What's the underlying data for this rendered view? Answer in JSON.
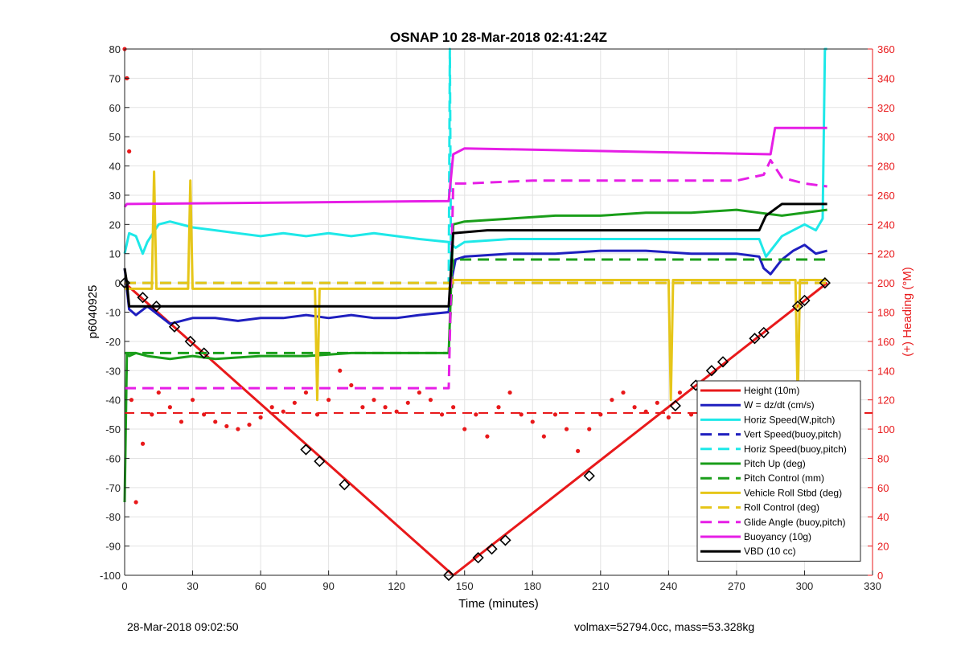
{
  "footer": {
    "left": "28-Mar-2018 09:02:50",
    "right": "volmax=52794.0cc, mass=53.328kg"
  },
  "chart_data": {
    "type": "line",
    "title": "OSNAP 10 28-Mar-2018 02:41:24Z",
    "xlabel": "Time (minutes)",
    "ylabel": "p6040925",
    "y2label": "(+) Heading (°M)",
    "xlim": [
      0,
      330
    ],
    "ylim": [
      -100,
      80
    ],
    "y2lim": [
      0,
      360
    ],
    "xticks": [
      0,
      30,
      60,
      90,
      120,
      150,
      180,
      210,
      240,
      270,
      300,
      330
    ],
    "yticks": [
      -100,
      -90,
      -80,
      -70,
      -60,
      -50,
      -40,
      -30,
      -20,
      -10,
      0,
      10,
      20,
      30,
      40,
      50,
      60,
      70,
      80
    ],
    "y2ticks": [
      0,
      20,
      40,
      60,
      80,
      100,
      120,
      140,
      160,
      180,
      200,
      220,
      240,
      260,
      280,
      300,
      320,
      340,
      360
    ],
    "grid": true,
    "legend_position": "bottom-right",
    "series": [
      {
        "name": "Height (10m)",
        "color": "#e8191b",
        "dash": "solid",
        "x": [
          0,
          145,
          310
        ],
        "y": [
          0,
          -100,
          0
        ]
      },
      {
        "name": "W = dz/dt (cm/s)",
        "color": "#1f1fbf",
        "dash": "solid",
        "x": [
          0,
          2,
          5,
          10,
          20,
          30,
          40,
          50,
          60,
          70,
          80,
          90,
          100,
          110,
          120,
          130,
          143,
          144,
          146,
          150,
          170,
          190,
          210,
          230,
          250,
          270,
          280,
          282,
          285,
          290,
          295,
          300,
          305,
          310
        ],
        "y": [
          5,
          -9,
          -11,
          -8,
          -14,
          -12,
          -12,
          -13,
          -12,
          -12,
          -11,
          -12,
          -11,
          -12,
          -12,
          -11,
          -10,
          0,
          8,
          9,
          10,
          10,
          11,
          11,
          10,
          10,
          9,
          5,
          3,
          8,
          11,
          13,
          10,
          11
        ]
      },
      {
        "name": "Horiz Speed(W,pitch)",
        "color": "#1ee8e8",
        "dash": "solid",
        "x": [
          0,
          2,
          5,
          8,
          10,
          15,
          20,
          30,
          40,
          50,
          60,
          70,
          80,
          90,
          100,
          110,
          120,
          130,
          143,
          146,
          150,
          170,
          190,
          210,
          230,
          250,
          270,
          280,
          283,
          286,
          290,
          295,
          300,
          305,
          308,
          309,
          310
        ],
        "y": [
          10,
          17,
          16,
          10,
          14,
          20,
          21,
          19,
          18,
          17,
          16,
          17,
          16,
          17,
          16,
          17,
          16,
          15,
          14,
          12,
          14,
          15,
          15,
          15,
          15,
          15,
          15,
          15,
          9,
          12,
          16,
          18,
          20,
          18,
          22,
          80,
          80
        ]
      },
      {
        "name": "Vert Speed(buoy,pitch)",
        "color": "#1f1fbf",
        "dash": "dashed",
        "x": [
          0,
          310
        ],
        "y": [
          0,
          0
        ]
      },
      {
        "name": "Horiz Speed(buoy,pitch)",
        "color": "#1ee8e8",
        "dash": "dashed",
        "x": [
          0,
          143,
          143.5,
          144
        ],
        "y": [
          0,
          0,
          80,
          7
        ]
      },
      {
        "name": "Pitch Up (deg)",
        "color": "#1a9e1a",
        "dash": "solid",
        "x": [
          0,
          1,
          2,
          5,
          10,
          20,
          30,
          40,
          60,
          80,
          100,
          120,
          143,
          145,
          150,
          170,
          190,
          210,
          230,
          250,
          270,
          280,
          290,
          300,
          310
        ],
        "y": [
          -75,
          -24,
          -25,
          -24,
          -25,
          -26,
          -25,
          -26,
          -25,
          -25,
          -24,
          -24,
          -24,
          20,
          21,
          22,
          23,
          23,
          24,
          24,
          25,
          24,
          23,
          24,
          25
        ]
      },
      {
        "name": "Pitch Control (mm)",
        "color": "#1a9e1a",
        "dash": "dashed",
        "x": [
          0,
          143,
          145,
          310
        ],
        "y": [
          -24,
          -24,
          8,
          8
        ]
      },
      {
        "name": "Vehicle Roll Stbd (deg)",
        "color": "#e6c619",
        "dash": "solid",
        "x": [
          0,
          10,
          12,
          13,
          14,
          20,
          28,
          29,
          30,
          40,
          80,
          84,
          85,
          86,
          100,
          143,
          145,
          160,
          170,
          200,
          240,
          241,
          242,
          243,
          260,
          290,
          296,
          297,
          298,
          310
        ],
        "y": [
          -2,
          -2,
          -2,
          38,
          -2,
          -2,
          -2,
          35,
          -2,
          -2,
          -2,
          -2,
          -40,
          -2,
          -2,
          -2,
          1,
          1,
          1,
          1,
          1,
          -40,
          1,
          1,
          1,
          1,
          1,
          -40,
          1,
          1
        ]
      },
      {
        "name": "Roll Control (deg)",
        "color": "#e6c619",
        "dash": "dashed",
        "x": [
          0,
          143,
          145,
          310
        ],
        "y": [
          0,
          0,
          0,
          0
        ]
      },
      {
        "name": "Glide Angle (buoy,pitch)",
        "color": "#e61ee6",
        "dash": "dashed",
        "x": [
          0,
          2,
          20,
          60,
          100,
          143,
          145,
          150,
          180,
          210,
          240,
          270,
          282,
          285,
          290,
          300,
          310
        ],
        "y": [
          -36,
          -36,
          -36,
          -36,
          -36,
          -36,
          34,
          34,
          35,
          35,
          35,
          35,
          37,
          42,
          36,
          34,
          33
        ]
      },
      {
        "name": "Buoyancy (10g)",
        "color": "#e61ee6",
        "dash": "solid",
        "x": [
          0,
          1,
          143,
          145,
          150,
          285,
          287,
          310
        ],
        "y": [
          26,
          27,
          28,
          44,
          46,
          44,
          53,
          53
        ]
      },
      {
        "name": "VBD (10 cc)",
        "color": "#000000",
        "dash": "solid",
        "x": [
          0,
          1,
          2,
          143,
          145,
          160,
          280,
          283,
          290,
          310
        ],
        "y": [
          5,
          0,
          -8,
          -8,
          17,
          18,
          18,
          23,
          27,
          27
        ]
      }
    ],
    "heading_series": {
      "name": "Heading",
      "color": "#e8191b",
      "axis": "right",
      "mean": 111,
      "x": [
        0,
        1,
        2,
        3,
        5,
        8,
        12,
        15,
        20,
        25,
        30,
        35,
        40,
        45,
        50,
        55,
        60,
        65,
        70,
        75,
        80,
        85,
        90,
        95,
        100,
        105,
        110,
        115,
        120,
        125,
        130,
        135,
        140,
        145,
        150,
        155,
        160,
        165,
        170,
        175,
        180,
        185,
        190,
        195,
        200,
        205,
        210,
        215,
        220,
        225,
        230,
        235,
        240,
        245,
        250,
        255,
        260,
        265,
        270,
        275,
        280,
        285,
        290,
        295,
        300,
        305,
        310
      ],
      "y": [
        360,
        340,
        290,
        120,
        50,
        90,
        110,
        125,
        115,
        105,
        120,
        110,
        105,
        102,
        100,
        103,
        108,
        115,
        112,
        118,
        125,
        110,
        120,
        140,
        130,
        115,
        120,
        115,
        112,
        118,
        125,
        120,
        110,
        115,
        100,
        110,
        95,
        115,
        125,
        110,
        105,
        95,
        110,
        100,
        85,
        100,
        110,
        120,
        125,
        115,
        112,
        118,
        108,
        125,
        110,
        95,
        115,
        105,
        100,
        110,
        125,
        130,
        115,
        120,
        110,
        125,
        130
      ]
    },
    "markers": {
      "x": [
        0,
        8,
        14,
        22,
        29,
        35,
        80,
        86,
        97,
        143,
        156,
        162,
        168,
        205,
        243,
        252,
        259,
        264,
        278,
        282,
        297,
        300,
        309
      ],
      "y": [
        0,
        -5,
        -8,
        -15,
        -20,
        -24,
        -57,
        -61,
        -69,
        -100,
        -94,
        -91,
        -88,
        -66,
        -42,
        -35,
        -30,
        -27,
        -19,
        -17,
        -8,
        -6,
        0
      ]
    }
  }
}
